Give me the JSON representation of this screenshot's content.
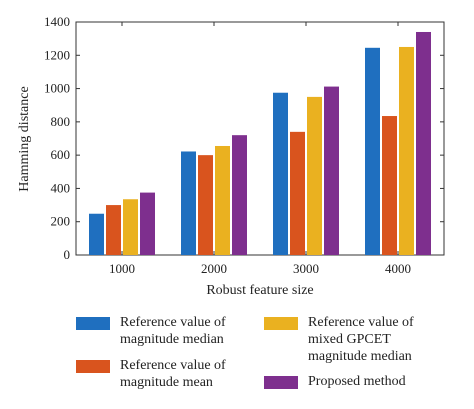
{
  "chart_data": {
    "type": "bar",
    "categories": [
      "1000",
      "2000",
      "3000",
      "4000"
    ],
    "series": [
      {
        "name": "Reference value of\nmagnitude median",
        "color": "#1f6fbf",
        "values": [
          248,
          622,
          975,
          1245
        ]
      },
      {
        "name": "Reference value of\nmagnitude mean",
        "color": "#d9541e",
        "values": [
          300,
          600,
          740,
          835
        ]
      },
      {
        "name": "Reference value of\nmixed GPCET\nmagnitude median",
        "color": "#eab120",
        "values": [
          335,
          655,
          950,
          1250
        ]
      },
      {
        "name": "Proposed method",
        "color": "#7e2f8e",
        "values": [
          375,
          720,
          1012,
          1340
        ]
      }
    ],
    "xlabel": "Robust feature size",
    "ylabel": "Hamming distance",
    "ylim": [
      0,
      1400
    ],
    "yticks": [
      "0",
      "200",
      "400",
      "600",
      "800",
      "1000",
      "1200",
      "1400"
    ],
    "grid": false,
    "legend_position": "below"
  }
}
